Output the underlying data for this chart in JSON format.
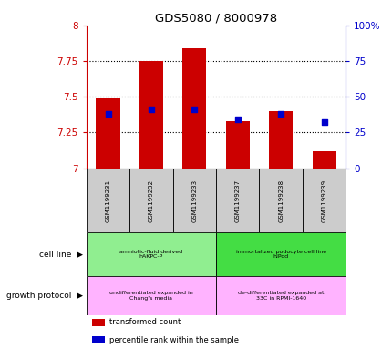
{
  "title": "GDS5080 / 8000978",
  "samples": [
    "GSM1199231",
    "GSM1199232",
    "GSM1199233",
    "GSM1199237",
    "GSM1199238",
    "GSM1199239"
  ],
  "red_values": [
    7.49,
    7.75,
    7.84,
    7.33,
    7.4,
    7.12
  ],
  "blue_values_left": [
    7.38,
    7.41,
    7.41,
    7.34,
    7.38,
    7.32
  ],
  "ymin": 7.0,
  "ymax": 8.0,
  "yticks": [
    7.0,
    7.25,
    7.5,
    7.75,
    8.0
  ],
  "ytick_labels": [
    "7",
    "7.25",
    "7.5",
    "7.75",
    "8"
  ],
  "right_yticks": [
    0,
    25,
    50,
    75,
    100
  ],
  "right_yticklabels": [
    "0",
    "25",
    "50",
    "75",
    "100%"
  ],
  "cell_line_groups": [
    {
      "label": "amniotic-fluid derived\nhAKPC-P",
      "start": 0,
      "end": 3,
      "color": "#90EE90"
    },
    {
      "label": "immortalized podocyte cell line\nhIPod",
      "start": 3,
      "end": 6,
      "color": "#44DD44"
    }
  ],
  "growth_protocol_groups": [
    {
      "label": "undifferentiated expanded in\nChang's media",
      "start": 0,
      "end": 3,
      "color": "#FFB3FF"
    },
    {
      "label": "de-differentiated expanded at\n33C in RPMI-1640",
      "start": 3,
      "end": 6,
      "color": "#FFB3FF"
    }
  ],
  "bar_color": "#CC0000",
  "blue_color": "#0000CC",
  "sample_bg_color": "#CCCCCC",
  "left_axis_color": "#CC0000",
  "right_axis_color": "#0000CC",
  "legend_items": [
    {
      "color": "#CC0000",
      "label": "transformed count"
    },
    {
      "color": "#0000CC",
      "label": "percentile rank within the sample"
    }
  ]
}
